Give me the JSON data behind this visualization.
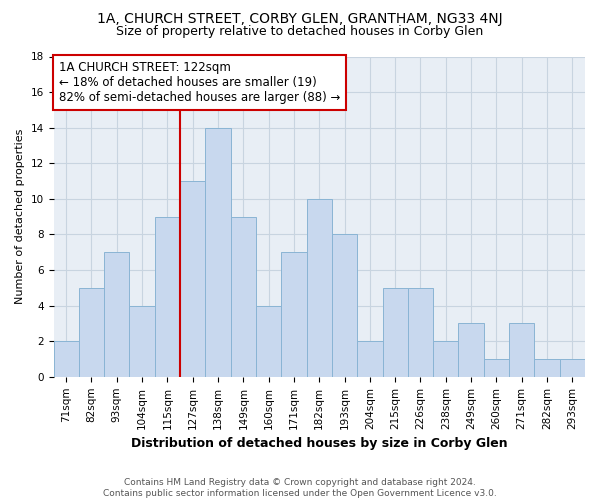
{
  "title1": "1A, CHURCH STREET, CORBY GLEN, GRANTHAM, NG33 4NJ",
  "title2": "Size of property relative to detached houses in Corby Glen",
  "xlabel": "Distribution of detached houses by size in Corby Glen",
  "ylabel": "Number of detached properties",
  "categories": [
    "71sqm",
    "82sqm",
    "93sqm",
    "104sqm",
    "115sqm",
    "127sqm",
    "138sqm",
    "149sqm",
    "160sqm",
    "171sqm",
    "182sqm",
    "193sqm",
    "204sqm",
    "215sqm",
    "226sqm",
    "238sqm",
    "249sqm",
    "260sqm",
    "271sqm",
    "282sqm",
    "293sqm"
  ],
  "values": [
    2,
    5,
    7,
    4,
    9,
    11,
    14,
    9,
    4,
    7,
    10,
    8,
    2,
    5,
    5,
    2,
    3,
    1,
    3,
    1,
    1
  ],
  "bar_color": "#c8d8ee",
  "bar_edge_color": "#8ab4d4",
  "annotation_line1": "1A CHURCH STREET: 122sqm",
  "annotation_line2": "← 18% of detached houses are smaller (19)",
  "annotation_line3": "82% of semi-detached houses are larger (88) →",
  "annotation_box_color": "#ffffff",
  "annotation_box_edge_color": "#cc0000",
  "vline_x_index": 5,
  "vline_color": "#cc0000",
  "ylim": [
    0,
    18
  ],
  "yticks": [
    0,
    2,
    4,
    6,
    8,
    10,
    12,
    14,
    16,
    18
  ],
  "grid_color": "#c8d4e0",
  "bg_color": "#ffffff",
  "plot_bg_color": "#e8eef5",
  "footer1": "Contains HM Land Registry data © Crown copyright and database right 2024.",
  "footer2": "Contains public sector information licensed under the Open Government Licence v3.0.",
  "title1_fontsize": 10,
  "title2_fontsize": 9,
  "xlabel_fontsize": 9,
  "ylabel_fontsize": 8,
  "tick_fontsize": 7.5,
  "annotation_fontsize": 8.5,
  "footer_fontsize": 6.5
}
